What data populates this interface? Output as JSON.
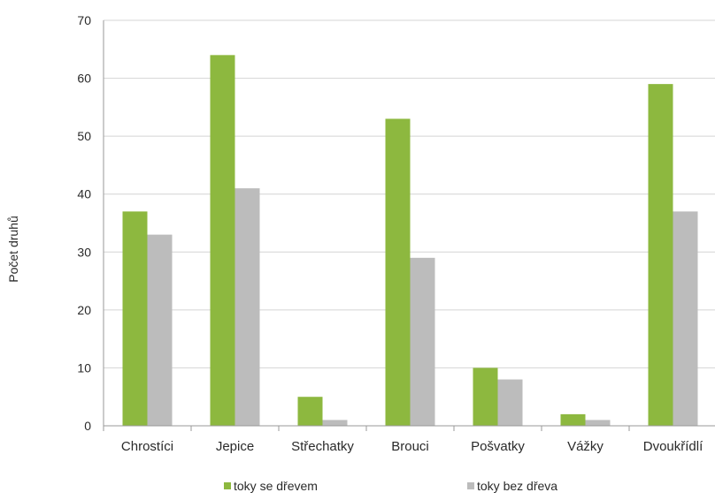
{
  "chart_data": {
    "type": "bar",
    "ylabel": "Počet druhů",
    "ylim": [
      0,
      70
    ],
    "yticks": [
      0,
      10,
      20,
      30,
      40,
      50,
      60,
      70
    ],
    "grid": true,
    "legend_position": "bottom",
    "categories": [
      "Chrostíci",
      "Jepice",
      "Střechatky",
      "Brouci",
      "Pošvatky",
      "Vážky",
      "Dvoukřídlí"
    ],
    "series": [
      {
        "name": "toky se dřevem",
        "color": "#8db83f",
        "values": [
          37,
          64,
          5,
          53,
          10,
          2,
          59
        ]
      },
      {
        "name": "toky bez dřeva",
        "color": "#bcbcbc",
        "values": [
          33,
          41,
          1,
          29,
          8,
          1,
          37
        ]
      }
    ]
  }
}
